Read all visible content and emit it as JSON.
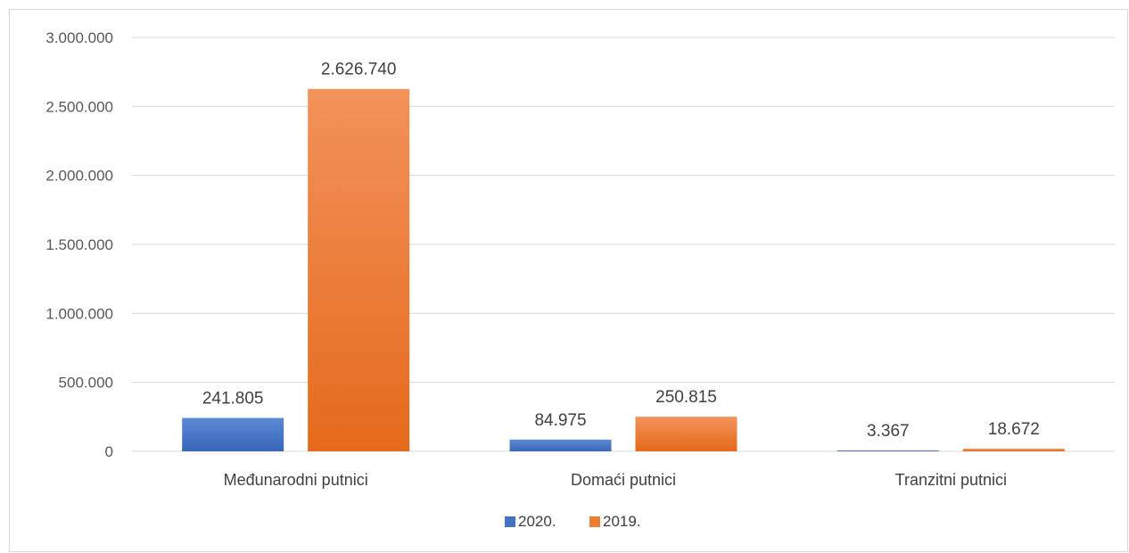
{
  "chart_data": {
    "type": "bar",
    "title": "",
    "xlabel": "",
    "ylabel": "",
    "categories": [
      "Međunarodni putnici",
      "Domaći putnici",
      "Tranzitni putnici"
    ],
    "series": [
      {
        "name": "2020.",
        "color": "#4472c4",
        "values": [
          241805,
          84975,
          3367
        ],
        "labels": [
          "241.805",
          "84.975",
          "3.367"
        ]
      },
      {
        "name": "2019.",
        "color": "#ed7d31",
        "values": [
          2626740,
          250815,
          18672
        ],
        "labels": [
          "2.626.740",
          "250.815",
          "18.672"
        ]
      }
    ],
    "ylim": [
      0,
      3000000
    ],
    "yticks": [
      0,
      500000,
      1000000,
      1500000,
      2000000,
      2500000,
      3000000
    ],
    "ytick_labels": [
      "0",
      "500.000",
      "1.000.000",
      "1.500.000",
      "2.000.000",
      "2.500.000",
      "3.000.000"
    ],
    "grid": true,
    "legend_position": "bottom"
  }
}
